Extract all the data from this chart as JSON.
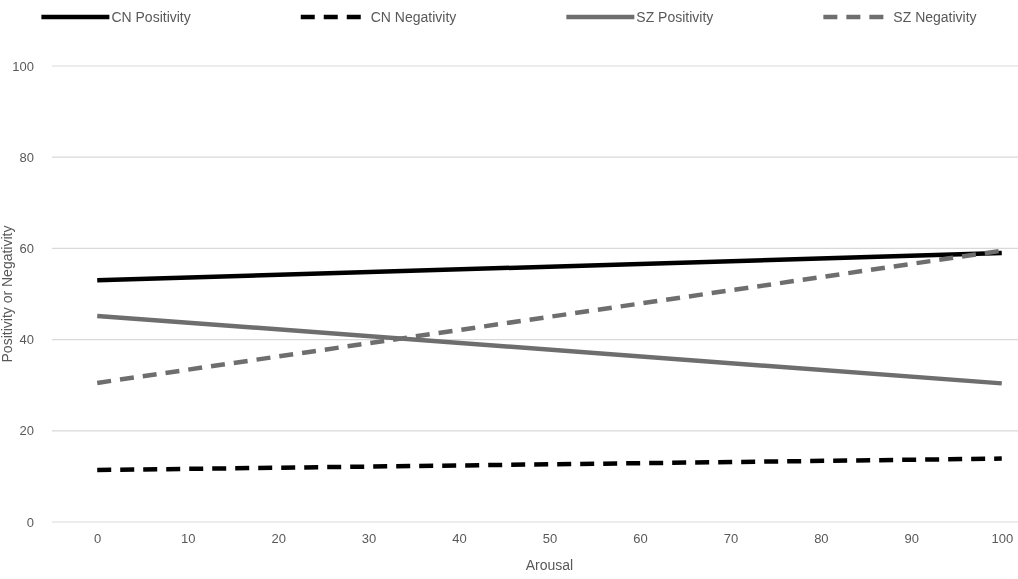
{
  "chart_data": {
    "type": "line",
    "xlabel": "Arousal",
    "ylabel": "Positivity or Negativity",
    "xlim": [
      -5,
      105
    ],
    "xticks": [
      0,
      10,
      20,
      30,
      40,
      50,
      60,
      70,
      80,
      90,
      100
    ],
    "ylim": [
      0,
      100
    ],
    "yticks": [
      0,
      20,
      40,
      60,
      80,
      100
    ],
    "x": [
      0,
      100
    ],
    "grid": "y",
    "legend": "top",
    "marker": "none",
    "series": [
      {
        "name": "CN Positivity",
        "color": "#000000",
        "line_style": "solid",
        "values": [
          53,
          59
        ]
      },
      {
        "name": "CN Negativity",
        "color": "#000000",
        "line_style": "dashed",
        "values": [
          11.4,
          13.9
        ]
      },
      {
        "name": "SZ Positivity",
        "color": "#6e6e6e",
        "line_style": "solid",
        "values": [
          45.2,
          30.4
        ]
      },
      {
        "name": "SZ Negativity",
        "color": "#6e6e6e",
        "line_style": "dashed",
        "values": [
          30.5,
          59.5
        ]
      }
    ]
  }
}
